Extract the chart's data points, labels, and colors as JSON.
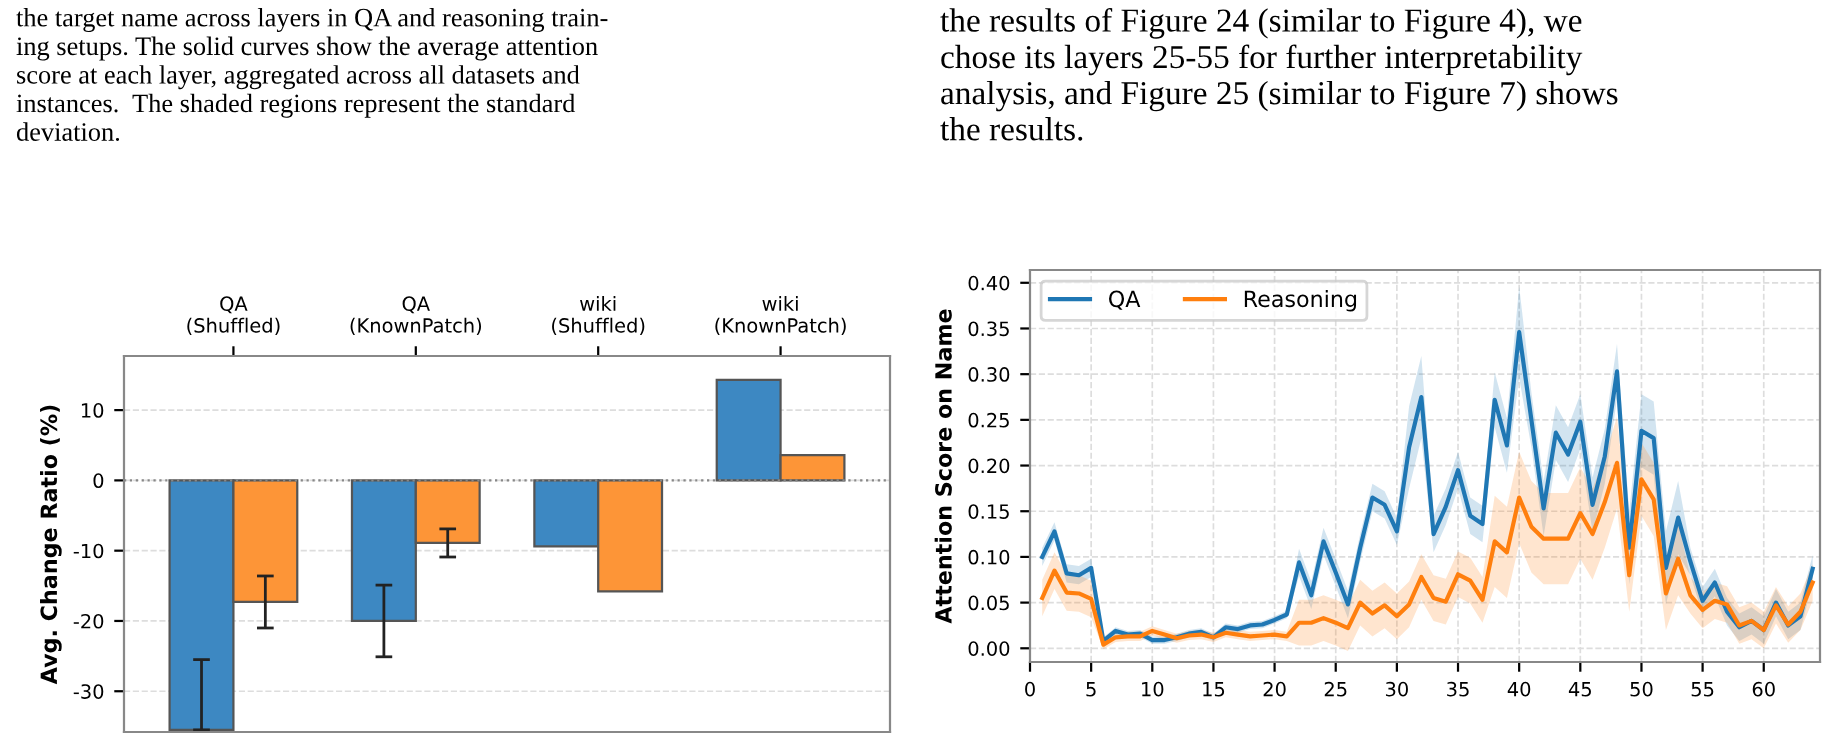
{
  "chart_data": [
    {
      "type": "bar",
      "categories": [
        "QA\n(Shuffled)",
        "QA\n(KnownPatch)",
        "wiki\n(Shuffled)",
        "wiki\n(KnownPatch)"
      ],
      "ylabel": "Avg. Change Ratio (%)",
      "series": [
        {
          "color": "#3d88c2",
          "values": [
            -35.5,
            -20,
            -9.4,
            14.3
          ],
          "errors": [
            [
              -35.5,
              -25.5
            ],
            5.1,
            null,
            null
          ]
        },
        {
          "color": "#fd9537",
          "values": [
            -17.3,
            -8.9,
            -15.8,
            3.6
          ],
          "errors": [
            3.7,
            2.0,
            null,
            null
          ]
        }
      ],
      "ylim": [
        -35.8,
        17.7
      ],
      "yticks": [
        -30,
        -20,
        -10,
        0,
        10
      ],
      "grid": "y",
      "ref_lines": [
        {
          "axis": "y",
          "value": 0,
          "color": "#888888",
          "line_style": "dotted"
        }
      ],
      "annotations": [
        "the target name across layers in QA and reasoning train-\ning setups. The solid curves show the average attention\nscore at each layer, aggregated across all datasets and\ninstances.  The shaded regions represent the standard\ndeviation."
      ]
    },
    {
      "type": "line",
      "ylabel": "Attention Score on Name",
      "x": [
        1,
        2,
        3,
        4,
        5,
        6,
        7,
        8,
        9,
        10,
        11,
        12,
        13,
        14,
        15,
        16,
        17,
        18,
        19,
        20,
        21,
        22,
        23,
        24,
        25,
        26,
        27,
        28,
        29,
        30,
        31,
        32,
        33,
        34,
        35,
        36,
        37,
        38,
        39,
        40,
        41,
        42,
        43,
        44,
        45,
        46,
        47,
        48,
        49,
        50,
        51,
        52,
        53,
        54,
        55,
        56,
        57,
        58,
        59,
        60,
        61,
        62,
        63,
        64
      ],
      "series": [
        {
          "name": "QA",
          "color": "#1f77b4",
          "values": [
            0.1,
            0.128,
            0.082,
            0.08,
            0.088,
            0.008,
            0.019,
            0.015,
            0.016,
            0.009,
            0.009,
            0.012,
            0.016,
            0.018,
            0.012,
            0.023,
            0.021,
            0.025,
            0.026,
            0.031,
            0.037,
            0.094,
            0.058,
            0.117,
            0.083,
            0.048,
            0.11,
            0.165,
            0.157,
            0.128,
            0.22,
            0.275,
            0.125,
            0.155,
            0.195,
            0.145,
            0.136,
            0.272,
            0.222,
            0.346,
            0.25,
            0.153,
            0.236,
            0.212,
            0.248,
            0.157,
            0.21,
            0.303,
            0.11,
            0.238,
            0.23,
            0.088,
            0.143,
            0.095,
            0.052,
            0.072,
            0.04,
            0.023,
            0.03,
            0.02,
            0.05,
            0.025,
            0.035,
            0.087
          ],
          "lower": [
            0.09,
            0.118,
            0.072,
            0.07,
            0.078,
            0.004,
            0.015,
            0.011,
            0.012,
            0.005,
            0.005,
            0.008,
            0.012,
            0.014,
            0.008,
            0.019,
            0.017,
            0.021,
            0.022,
            0.027,
            0.033,
            0.079,
            0.043,
            0.102,
            0.068,
            0.033,
            0.095,
            0.15,
            0.142,
            0.113,
            0.175,
            0.23,
            0.105,
            0.135,
            0.175,
            0.125,
            0.116,
            0.242,
            0.192,
            0.296,
            0.22,
            0.123,
            0.206,
            0.182,
            0.218,
            0.127,
            0.18,
            0.273,
            0.07,
            0.198,
            0.19,
            0.048,
            0.103,
            0.08,
            0.037,
            0.057,
            0.025,
            0.008,
            0.015,
            0.005,
            0.035,
            0.01,
            0.02,
            0.072
          ],
          "upper": [
            0.11,
            0.138,
            0.092,
            0.09,
            0.098,
            0.012,
            0.023,
            0.019,
            0.02,
            0.013,
            0.013,
            0.016,
            0.02,
            0.022,
            0.016,
            0.027,
            0.025,
            0.029,
            0.03,
            0.035,
            0.041,
            0.109,
            0.073,
            0.132,
            0.098,
            0.063,
            0.125,
            0.18,
            0.172,
            0.143,
            0.265,
            0.32,
            0.145,
            0.175,
            0.215,
            0.165,
            0.156,
            0.302,
            0.252,
            0.396,
            0.28,
            0.183,
            0.266,
            0.242,
            0.278,
            0.187,
            0.24,
            0.333,
            0.15,
            0.278,
            0.27,
            0.128,
            0.183,
            0.11,
            0.067,
            0.087,
            0.055,
            0.038,
            0.045,
            0.035,
            0.065,
            0.04,
            0.05,
            0.102
          ]
        },
        {
          "name": "Reasoning",
          "color": "#ff7f0e",
          "values": [
            0.055,
            0.085,
            0.061,
            0.06,
            0.054,
            0.004,
            0.012,
            0.013,
            0.013,
            0.019,
            0.015,
            0.011,
            0.014,
            0.015,
            0.012,
            0.017,
            0.015,
            0.013,
            0.014,
            0.015,
            0.013,
            0.028,
            0.028,
            0.033,
            0.028,
            0.022,
            0.05,
            0.038,
            0.047,
            0.035,
            0.048,
            0.078,
            0.055,
            0.051,
            0.081,
            0.074,
            0.053,
            0.117,
            0.105,
            0.165,
            0.133,
            0.12,
            0.12,
            0.12,
            0.148,
            0.125,
            0.16,
            0.203,
            0.08,
            0.185,
            0.163,
            0.06,
            0.098,
            0.058,
            0.042,
            0.052,
            0.048,
            0.025,
            0.03,
            0.02,
            0.047,
            0.026,
            0.04,
            0.072
          ],
          "lower": [
            0.035,
            0.065,
            0.041,
            0.04,
            0.034,
            -0.001,
            0.007,
            0.008,
            0.008,
            0.014,
            0.01,
            0.006,
            0.009,
            0.01,
            0.007,
            0.012,
            0.01,
            0.008,
            0.009,
            0.01,
            0.008,
            0.003,
            0.003,
            0.008,
            0.003,
            -0.003,
            0.025,
            0.013,
            0.022,
            0.01,
            0.023,
            0.053,
            0.03,
            0.026,
            0.056,
            0.049,
            0.028,
            0.067,
            0.055,
            0.115,
            0.083,
            0.07,
            0.07,
            0.07,
            0.098,
            0.075,
            0.11,
            0.153,
            0.04,
            0.145,
            0.123,
            0.02,
            0.058,
            0.038,
            0.022,
            0.032,
            0.028,
            0.005,
            0.01,
            0.0,
            0.027,
            0.006,
            0.02,
            0.052
          ],
          "upper": [
            0.075,
            0.105,
            0.081,
            0.08,
            0.074,
            0.009,
            0.017,
            0.018,
            0.018,
            0.024,
            0.02,
            0.016,
            0.019,
            0.02,
            0.017,
            0.022,
            0.02,
            0.018,
            0.019,
            0.02,
            0.018,
            0.053,
            0.053,
            0.058,
            0.053,
            0.047,
            0.075,
            0.063,
            0.072,
            0.06,
            0.073,
            0.103,
            0.08,
            0.076,
            0.106,
            0.099,
            0.078,
            0.167,
            0.155,
            0.215,
            0.183,
            0.17,
            0.17,
            0.17,
            0.198,
            0.175,
            0.21,
            0.253,
            0.12,
            0.225,
            0.203,
            0.1,
            0.138,
            0.078,
            0.062,
            0.072,
            0.068,
            0.045,
            0.05,
            0.04,
            0.067,
            0.046,
            0.06,
            0.092
          ]
        }
      ],
      "xlim": [
        0,
        64.6
      ],
      "xticks": [
        0,
        5,
        10,
        15,
        20,
        25,
        30,
        35,
        40,
        45,
        50,
        55,
        60
      ],
      "ylim": [
        -0.015,
        0.414
      ],
      "yticks": [
        {
          "value": 0,
          "label": "0.00"
        },
        {
          "value": 0.05,
          "label": "0.05"
        },
        {
          "value": 0.1,
          "label": "0.10"
        },
        {
          "value": 0.15,
          "label": "0.15"
        },
        {
          "value": 0.2,
          "label": "0.20"
        },
        {
          "value": 0.25,
          "label": "0.25"
        },
        {
          "value": 0.3,
          "label": "0.30"
        },
        {
          "value": 0.35,
          "label": "0.35"
        },
        {
          "value": 0.4,
          "label": "0.40"
        }
      ],
      "grid": true,
      "legend": "top left",
      "annotations": [
        "the results of Figure 24 (similar to Figure 4), we\nchose its layers 25-55 for further interpretability\nanalysis, and Figure 25 (similar to Figure 7) shows\nthe results."
      ]
    }
  ]
}
